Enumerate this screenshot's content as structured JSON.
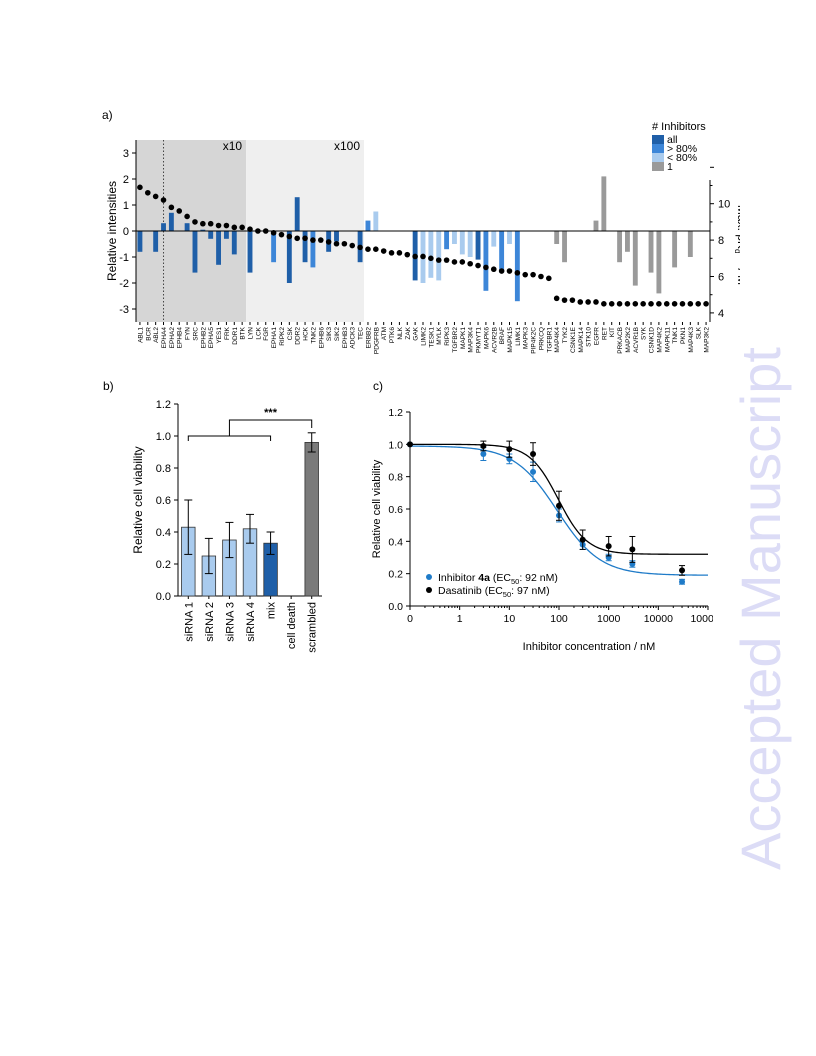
{
  "watermark": "Accepted Manuscript",
  "panels": {
    "a": "a)",
    "b": "b)",
    "c": "c)"
  },
  "colors": {
    "all": "#1f5fa8",
    "gt80": "#3d86d8",
    "lt80": "#a9cbee",
    "one": "#9a9a9a",
    "dark_shade": "#d6d6d6",
    "light_shade": "#efefef",
    "curve_inhib": "#1f7bc8",
    "curve_dasa": "#000000"
  },
  "chart_data": [
    {
      "type": "bar",
      "panel": "a",
      "ylabel": "Relative intensities",
      "ylabel_right": "Max. pKdapp / M",
      "ylim": [
        -3.5,
        3.5
      ],
      "yticks": [
        3,
        2,
        1,
        0,
        -1,
        -2,
        -3
      ],
      "y2ticks": [
        10,
        8,
        6,
        4
      ],
      "y2lim": [
        3.5,
        13.5
      ],
      "zone_labels": [
        "x10",
        "x100"
      ],
      "legend": {
        "title": "# Inhibitors",
        "position": "top-right",
        "entries": [
          {
            "label": "all",
            "group": "all"
          },
          {
            "label": "> 80%",
            "group": "gt80"
          },
          {
            "label": "< 80%",
            "group": "lt80"
          },
          {
            "label": "1",
            "group": "one"
          }
        ]
      },
      "categories": [
        "ABL1",
        "BCR",
        "ABL2",
        "EPHA4",
        "EPHA2",
        "EPHB4",
        "FYN",
        "SRC",
        "EPHB2",
        "EPHA5",
        "YES1",
        "FRK",
        "DDR1",
        "BTK",
        "LYN",
        "LCK",
        "FGR",
        "EPHA1",
        "RIPK2",
        "CSK",
        "DDR2",
        "HCK",
        "TNK2",
        "EPHB6",
        "SIK3",
        "SIK2",
        "EPHB3",
        "ADCK3",
        "TEC",
        "ERBB2",
        "PDGFRB",
        "ATM",
        "PTK6",
        "NLK",
        "ZAK",
        "GAK",
        "LIMK2",
        "TESK1",
        "MYLK",
        "RIPK3",
        "TGFBR2",
        "MAPK1",
        "MAP3K4",
        "PKMYT1",
        "MAPK6",
        "ACVR2B",
        "BRAF",
        "MAPK15",
        "LIMK1",
        "MAPK3",
        "PIP4K2C",
        "PRKCQ",
        "TGFBR1",
        "MAP4K4",
        "TYK2",
        "CSNK1E",
        "MAPK14",
        "STK10",
        "EGFR",
        "RET",
        "KIT",
        "PRKACB",
        "MAP2K2",
        "ACVR1B",
        "SYK",
        "CSNK1D",
        "MAP4K2",
        "MAPK11",
        "TNK1",
        "PKN1",
        "MAP4K3",
        "SLK",
        "MAP3K2"
      ],
      "series": [
        {
          "values": [
            -0.8,
            0,
            -0.8,
            0.3,
            0.7,
            0,
            0.3,
            -1.6,
            0.05,
            -0.3,
            -1.3,
            -0.3,
            -0.9,
            0,
            -1.6,
            0,
            0,
            -1.2,
            0,
            -2.0,
            1.3,
            -1.2,
            -1.4,
            0,
            -0.8,
            -0.4,
            0,
            0,
            -1.2,
            0.4,
            0.75,
            0,
            0,
            0,
            0,
            -1.9,
            -2.0,
            -1.8,
            -1.9,
            -0.7,
            -0.5,
            -0.9,
            -1.0,
            -1.1,
            -2.3,
            -0.6,
            -1.6,
            -0.5,
            -2.7,
            0,
            0,
            0,
            0,
            -0.5,
            -1.2,
            0,
            0,
            0,
            0.4,
            2.1,
            0,
            -1.2,
            -0.8,
            -2.1,
            0,
            -1.6,
            -2.4,
            0,
            -1.4,
            0,
            -1.0,
            0,
            0
          ]
        },
        {
          "values": [
            "all",
            "all",
            "all",
            "all",
            "all",
            "all",
            "all",
            "all",
            "all",
            "all",
            "all",
            "all",
            "all",
            "all",
            "all",
            "gt80",
            "gt80",
            "gt80",
            "gt80",
            "all",
            "all",
            "all",
            "gt80",
            "gt80",
            "all",
            "all",
            "all",
            "all",
            "all",
            "gt80",
            "lt80",
            "all",
            "all",
            "all",
            "all",
            "all",
            "lt80",
            "lt80",
            "lt80",
            "gt80",
            "lt80",
            "lt80",
            "lt80",
            "all",
            "gt80",
            "lt80",
            "gt80",
            "lt80",
            "gt80",
            "lt80",
            "lt80",
            "lt80",
            "lt80",
            "one",
            "one",
            "one",
            "one",
            "one",
            "one",
            "one",
            "one",
            "one",
            "one",
            "one",
            "one",
            "one",
            "one",
            "one",
            "one",
            "one",
            "one",
            "one",
            "one"
          ]
        },
        {
          "values": [
            10.9,
            10.6,
            10.4,
            10.2,
            9.8,
            9.6,
            9.3,
            9.0,
            8.9,
            8.9,
            8.8,
            8.8,
            8.7,
            8.7,
            8.6,
            8.5,
            8.5,
            8.4,
            8.3,
            8.2,
            8.1,
            8.1,
            8.0,
            8.0,
            7.9,
            7.8,
            7.8,
            7.7,
            7.6,
            7.5,
            7.5,
            7.4,
            7.3,
            7.3,
            7.2,
            7.1,
            7.1,
            7.0,
            6.9,
            6.9,
            6.8,
            6.8,
            6.7,
            6.6,
            6.5,
            6.4,
            6.3,
            6.3,
            6.2,
            6.1,
            6.1,
            6.0,
            5.9,
            4.8,
            4.7,
            4.7,
            4.6,
            4.6,
            4.6,
            4.5,
            4.5,
            4.5,
            4.5,
            4.5,
            4.5,
            4.5,
            4.5,
            4.5,
            4.5,
            4.5,
            4.5,
            4.5,
            4.5
          ]
        }
      ]
    },
    {
      "type": "bar",
      "panel": "b",
      "ylabel": "Relative cell viability",
      "ylim": [
        0,
        1.2
      ],
      "yticks": [
        0.0,
        0.2,
        0.4,
        0.6,
        0.8,
        1.0,
        1.2
      ],
      "categories": [
        "siRNA 1",
        "siRNA 2",
        "siRNA 3",
        "siRNA 4",
        "mix",
        "cell death",
        "scrambled"
      ],
      "values": [
        0.43,
        0.25,
        0.35,
        0.42,
        0.33,
        0,
        0.96
      ],
      "errors": [
        0.17,
        0.11,
        0.11,
        0.09,
        0.07,
        0,
        0.06
      ],
      "bar_colors": [
        "#a9cbee",
        "#a9cbee",
        "#a9cbee",
        "#a9cbee",
        "#1f5fa8",
        "#ffffff",
        "#7a7a7a"
      ],
      "annotation": "***"
    },
    {
      "type": "scatter",
      "panel": "c",
      "xlabel": "Inhibitor concentration  / nM",
      "ylabel": "Relative cell viability",
      "xticks": [
        "0",
        "1",
        "10",
        "100",
        "1000",
        "10000",
        "100000"
      ],
      "yticks": [
        0.0,
        0.2,
        0.4,
        0.6,
        0.8,
        1.0,
        1.2
      ],
      "ylim": [
        0,
        1.2
      ],
      "xlim": [
        0.1,
        100000
      ],
      "legend_position": "bottom-left",
      "series": [
        {
          "name": "Inhibitor 4a (EC50: 92 nM)",
          "color": "#1f7bc8",
          "x": [
            0.1,
            3,
            10,
            30,
            100,
            300,
            1000,
            3000,
            30000
          ],
          "y": [
            1.0,
            0.94,
            0.91,
            0.83,
            0.56,
            0.38,
            0.3,
            0.26,
            0.15
          ],
          "err": [
            0,
            0.04,
            0.03,
            0.06,
            0.04,
            0.03,
            0.02,
            0.02,
            0.015
          ],
          "fit": {
            "top": 0.99,
            "bottom": 0.19,
            "ec50": 92,
            "hill": 1.0
          }
        },
        {
          "name": "Dasatinib (EC50: 97 nM)",
          "color": "#000000",
          "x": [
            0.1,
            3,
            10,
            30,
            100,
            300,
            1000,
            3000,
            30000
          ],
          "y": [
            1.0,
            0.99,
            0.97,
            0.94,
            0.62,
            0.41,
            0.37,
            0.35,
            0.22
          ],
          "err": [
            0,
            0.03,
            0.05,
            0.07,
            0.09,
            0.06,
            0.06,
            0.08,
            0.03
          ],
          "fit": {
            "top": 1.0,
            "bottom": 0.32,
            "ec50": 97,
            "hill": 1.5
          }
        }
      ],
      "legend_entries": [
        {
          "pre": "Inhibitor ",
          "bold": "4a",
          "post": " (EC",
          "sub": "50",
          "tail": ": 92 nM)"
        },
        {
          "pre": "Dasatinib (EC",
          "bold": "",
          "post": "",
          "sub": "50",
          "tail": ": 97 nM)"
        }
      ]
    }
  ]
}
